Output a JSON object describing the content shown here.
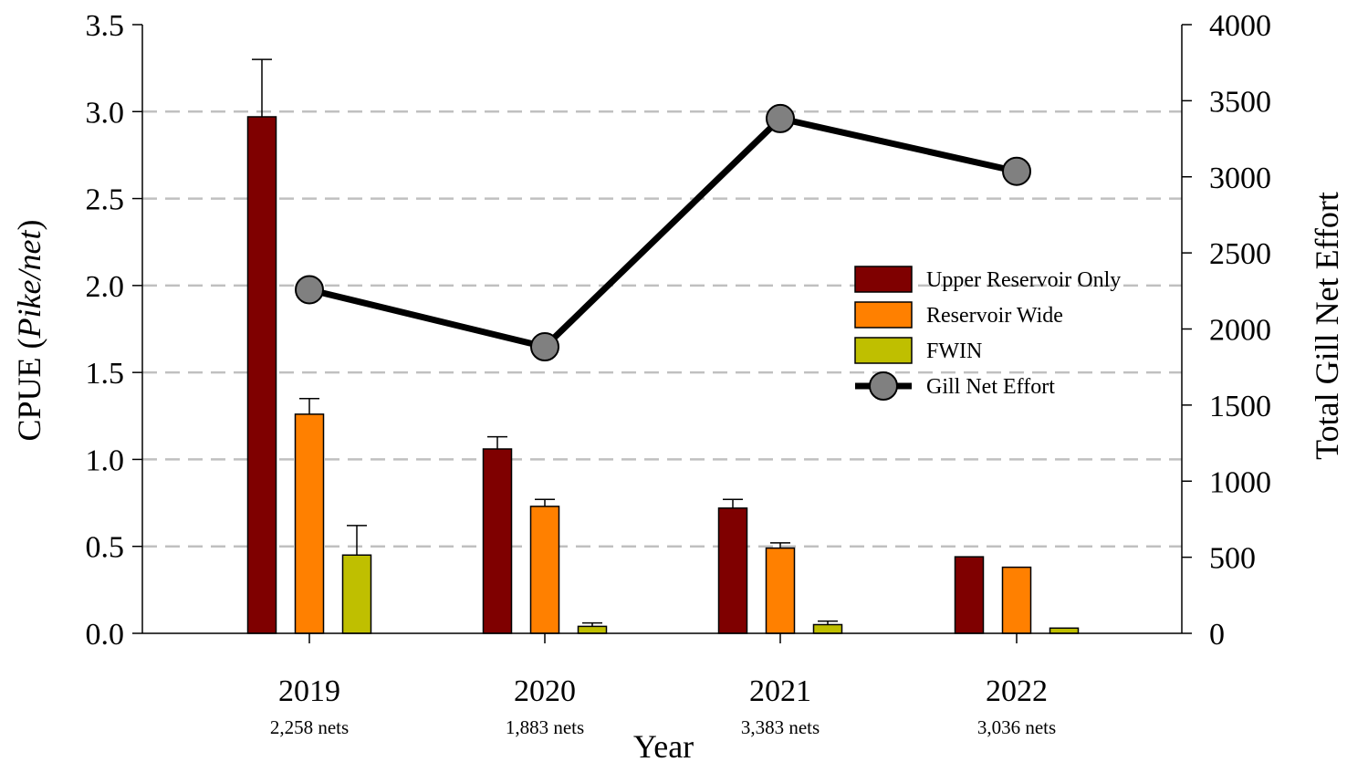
{
  "chart_data": {
    "type": "bar",
    "categories": [
      "2019",
      "2020",
      "2021",
      "2022"
    ],
    "category_sublabels": [
      "2,258 nets",
      "1,883 nets",
      "3,383 nets",
      "3,036 nets"
    ],
    "xlabel": "Year",
    "ylabel_prefix": "CPUE (",
    "ylabel_italic": "Pike/net",
    "ylabel_suffix": ")",
    "y2label": "Total Gill Net Effort",
    "ylim": [
      0,
      3.5
    ],
    "yticks": [
      0.0,
      0.5,
      1.0,
      1.5,
      2.0,
      2.5,
      3.0,
      3.5
    ],
    "ytick_labels": [
      "0.0",
      "0.5",
      "1.0",
      "1.5",
      "2.0",
      "2.5",
      "3.0",
      "3.5"
    ],
    "y2lim": [
      0,
      4000
    ],
    "y2ticks": [
      0,
      500,
      1000,
      1500,
      2000,
      2500,
      3000,
      3500,
      4000
    ],
    "y2tick_labels": [
      "0",
      "500",
      "1000",
      "1500",
      "2000",
      "2500",
      "3000",
      "3500",
      "4000"
    ],
    "grid": "horizontal dashed",
    "legend_position": "center-right",
    "series": [
      {
        "name": "Upper Reservoir Only",
        "type": "bar",
        "axis": "left",
        "color": "#7f0000",
        "values": [
          2.97,
          1.06,
          0.72,
          0.44
        ],
        "error_upper": [
          3.3,
          1.13,
          0.77,
          null
        ]
      },
      {
        "name": "Reservoir Wide",
        "type": "bar",
        "axis": "left",
        "color": "#ff8000",
        "values": [
          1.26,
          0.73,
          0.49,
          0.38
        ],
        "error_upper": [
          1.35,
          0.77,
          0.52,
          null
        ]
      },
      {
        "name": "FWIN",
        "type": "bar",
        "axis": "left",
        "color": "#bfbf00",
        "values": [
          0.45,
          0.04,
          0.05,
          0.03
        ],
        "error_upper": [
          0.62,
          0.06,
          0.07,
          null
        ]
      },
      {
        "name": "Gill Net Effort",
        "type": "line",
        "axis": "right",
        "color": "#000000",
        "marker_color": "#808080",
        "values": [
          2258,
          1883,
          3383,
          3036
        ]
      }
    ]
  }
}
